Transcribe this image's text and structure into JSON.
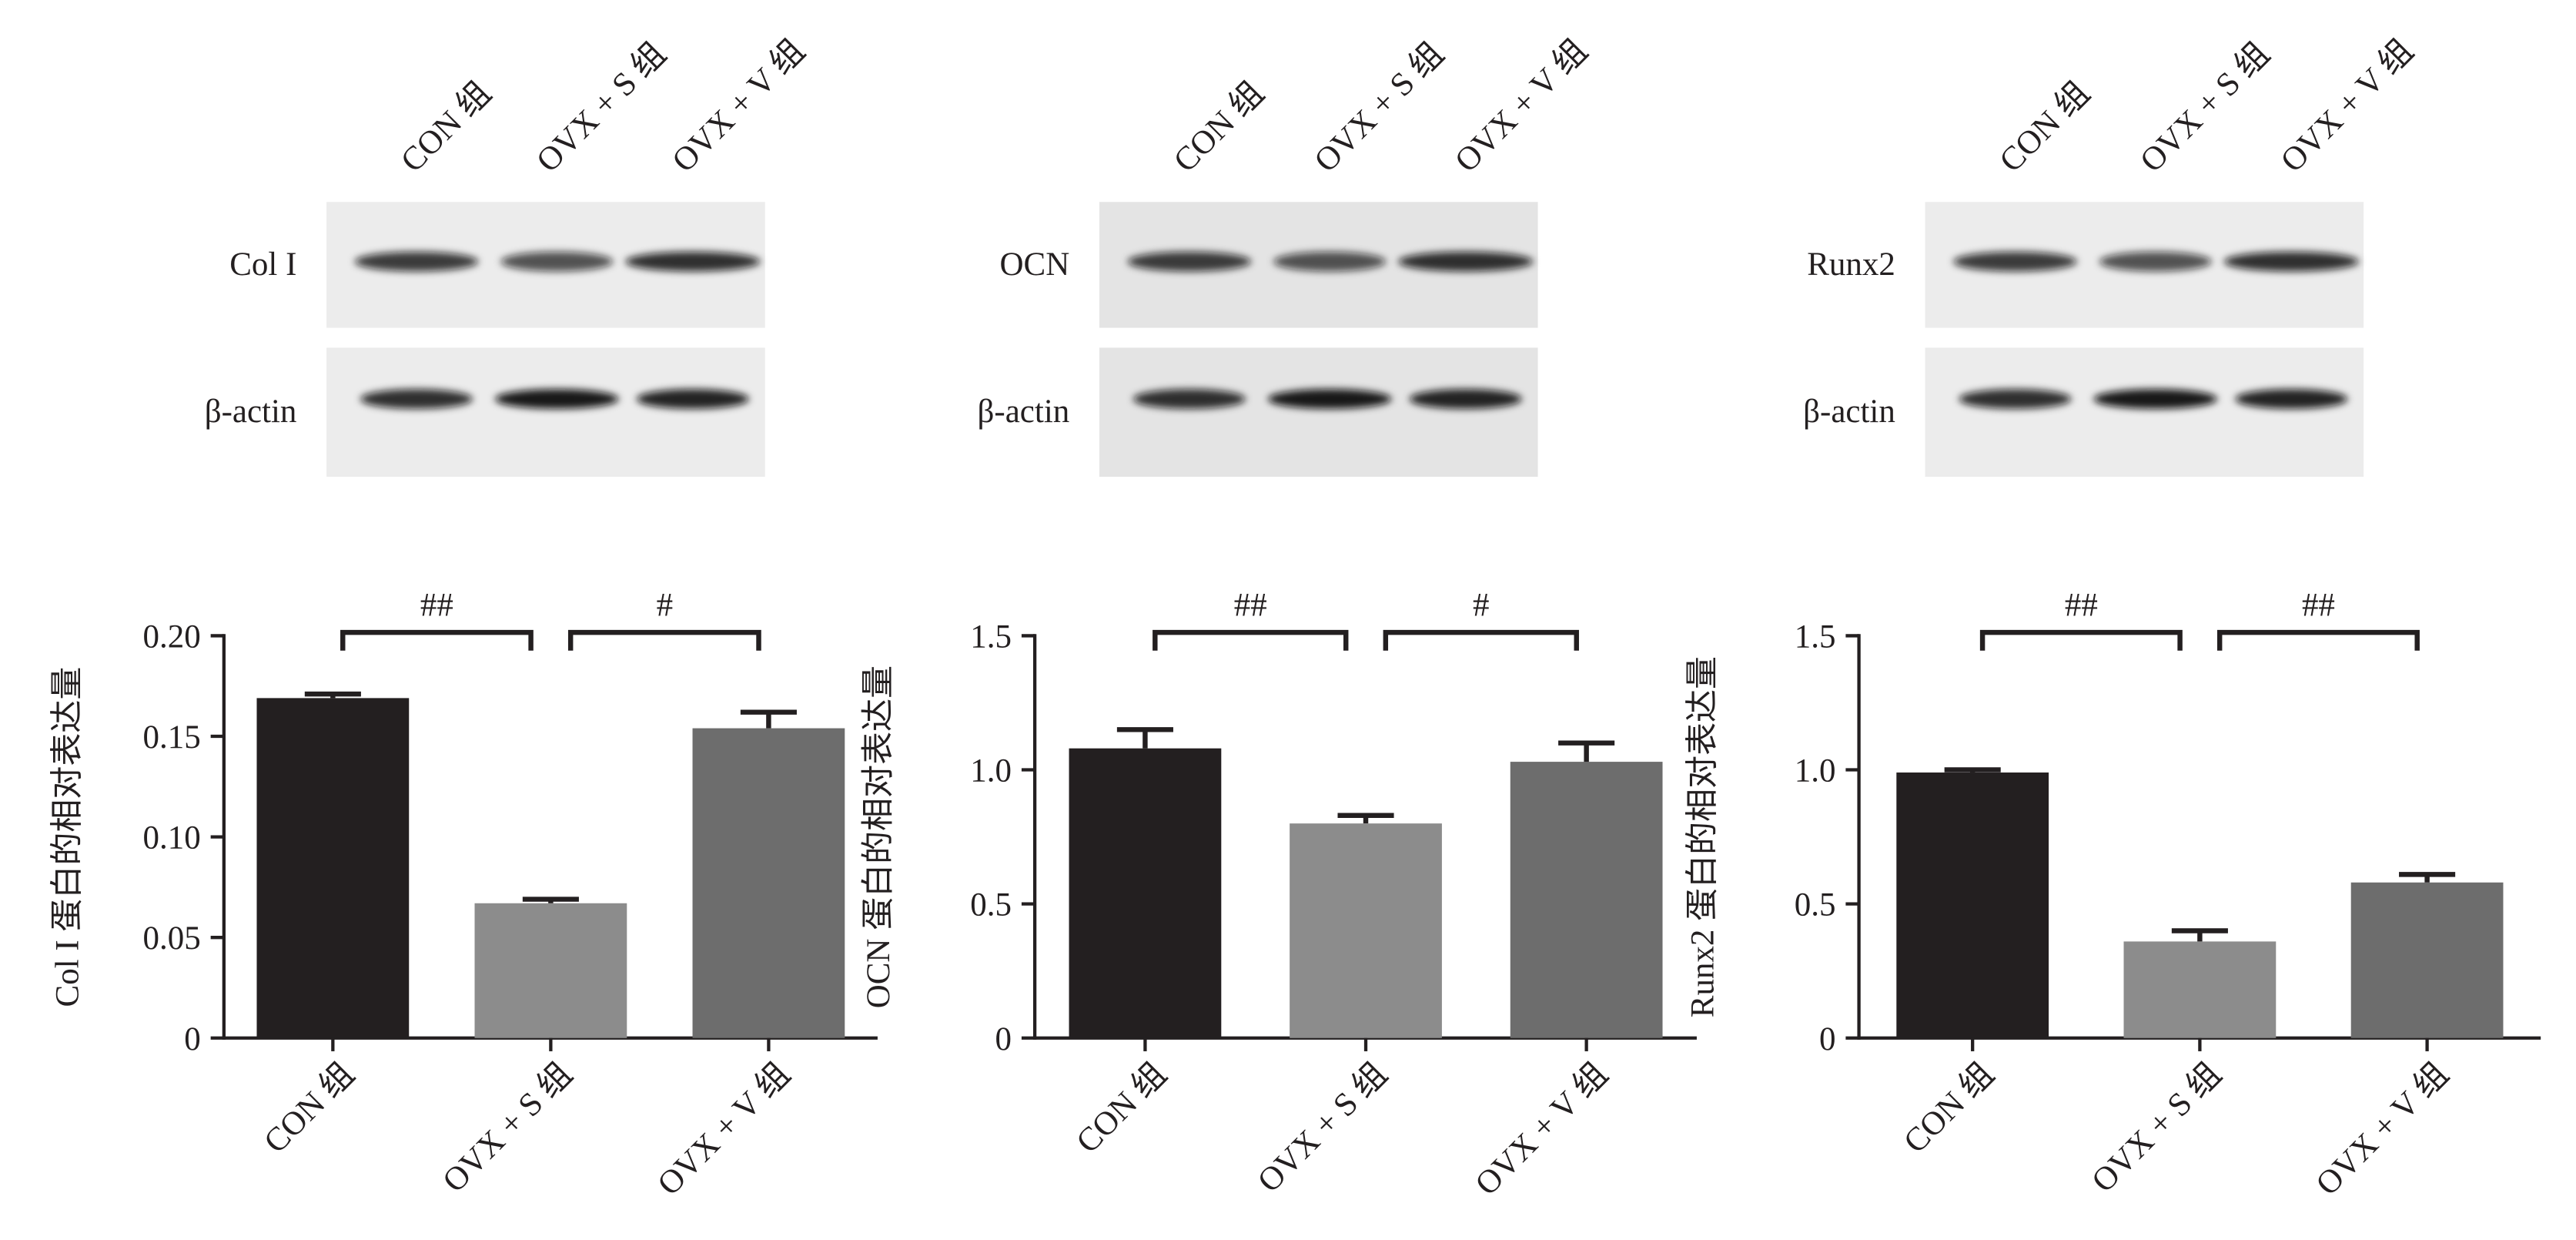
{
  "blots": [
    {
      "lanes": [
        "CON 组",
        "OVX + S 组",
        "OVX + V 组"
      ],
      "rows": [
        "Col I",
        "β-actin"
      ]
    },
    {
      "lanes": [
        "CON 组",
        "OVX + S 组",
        "OVX + V 组"
      ],
      "rows": [
        "OCN",
        "β-actin"
      ]
    },
    {
      "lanes": [
        "CON 组",
        "OVX + S 组",
        "OVX + V 组"
      ],
      "rows": [
        "Runx2",
        "β-actin"
      ]
    }
  ],
  "chart_data": [
    {
      "type": "bar",
      "y_label": "Col I 蛋白的相对表达量",
      "categories": [
        "CON 组",
        "OVX + S 组",
        "OVX + V 组"
      ],
      "values": [
        0.169,
        0.067,
        0.154
      ],
      "errors": [
        0.002,
        0.002,
        0.008
      ],
      "colors": [
        "#231f20",
        "#8c8c8c",
        "#6d6d6d"
      ],
      "ylim": [
        0,
        0.2
      ],
      "yticks": [
        0,
        0.05,
        {
          "value": 0.1,
          "label": "0.10"
        },
        0.15,
        {
          "value": 0.2,
          "label": "0.20"
        }
      ],
      "comparisons": [
        {
          "groups": [
            "CON 组",
            "OVX + S 组"
          ],
          "label": "##"
        },
        {
          "groups": [
            "OVX + S 组",
            "OVX + V 组"
          ],
          "label": "#"
        }
      ]
    },
    {
      "type": "bar",
      "y_label": "OCN 蛋白的相对表达量",
      "categories": [
        "CON 组",
        "OVX + S 组",
        "OVX + V 组"
      ],
      "values": [
        1.08,
        0.8,
        1.03
      ],
      "errors": [
        0.07,
        0.03,
        0.07
      ],
      "colors": [
        "#231f20",
        "#8c8c8c",
        "#6d6d6d"
      ],
      "ylim": [
        0,
        1.5
      ],
      "yticks": [
        0,
        0.5,
        {
          "value": 1,
          "label": "1.0"
        },
        1.5
      ],
      "comparisons": [
        {
          "groups": [
            "CON 组",
            "OVX + S 组"
          ],
          "label": "##"
        },
        {
          "groups": [
            "OVX + S 组",
            "OVX + V 组"
          ],
          "label": "#"
        }
      ]
    },
    {
      "type": "bar",
      "y_label": "Runx2 蛋白的相对表达量",
      "categories": [
        "CON 组",
        "OVX + S 组",
        "OVX + V 组"
      ],
      "values": [
        0.99,
        0.36,
        0.58
      ],
      "errors": [
        0.01,
        0.04,
        0.03
      ],
      "colors": [
        "#231f20",
        "#8c8c8c",
        "#6d6d6d"
      ],
      "ylim": [
        0,
        1.5
      ],
      "yticks": [
        0,
        0.5,
        {
          "value": 1,
          "label": "1.0"
        },
        1.5
      ],
      "comparisons": [
        {
          "groups": [
            "CON 组",
            "OVX + S 组"
          ],
          "label": "##"
        },
        {
          "groups": [
            "OVX + S 组",
            "OVX + V 组"
          ],
          "label": "##"
        }
      ]
    }
  ]
}
